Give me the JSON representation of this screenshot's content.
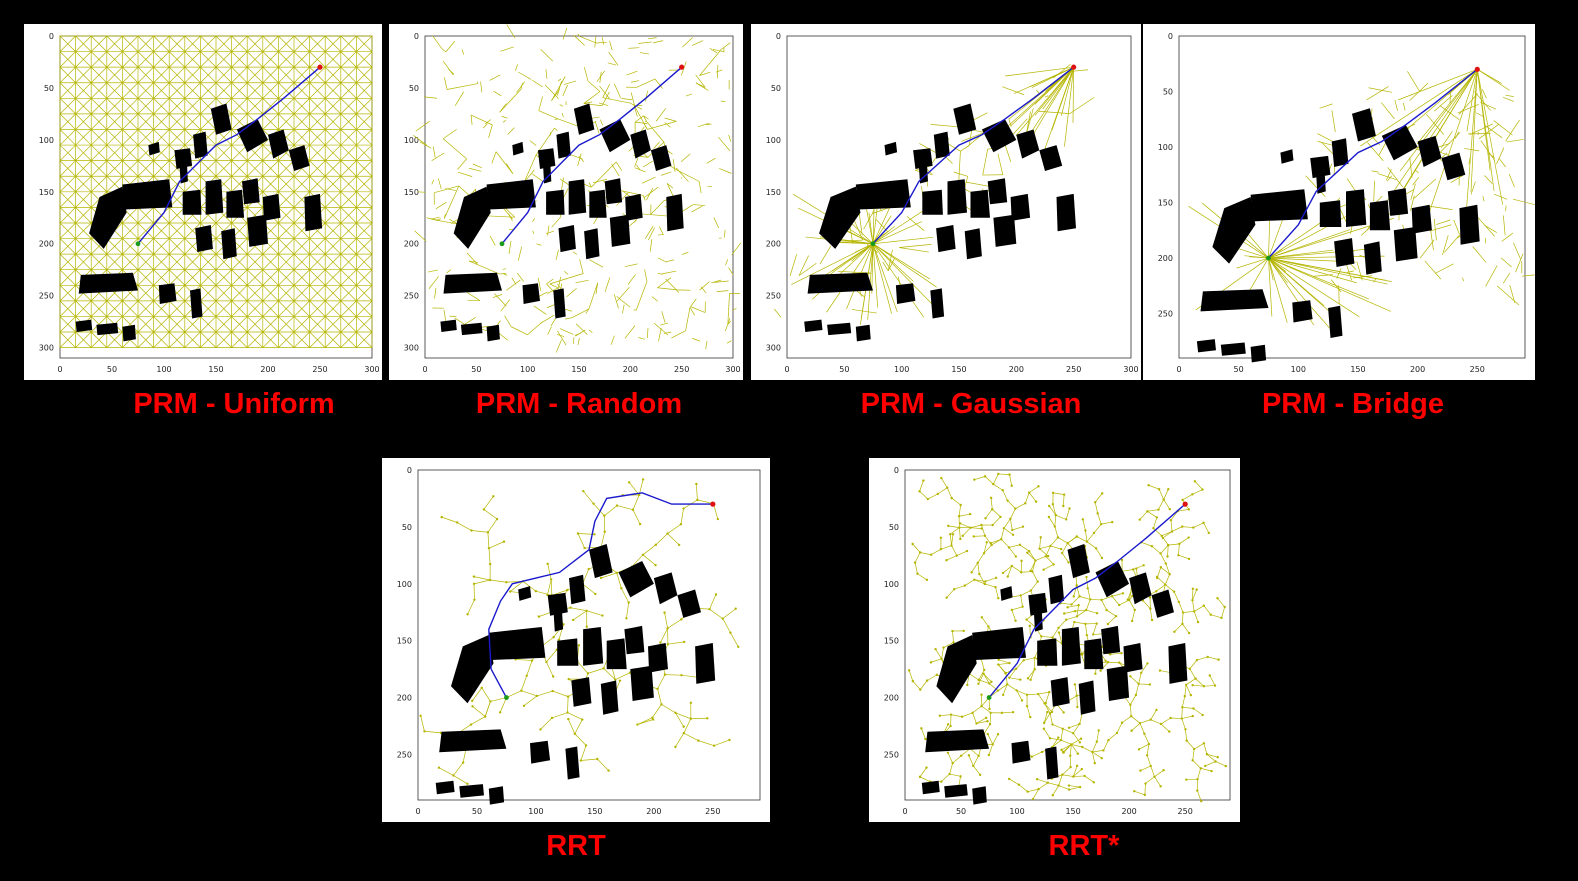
{
  "colors": {
    "background": "#000000",
    "caption": "#ff0000",
    "roadmap": "#b5b500",
    "path": "#1a1acc",
    "goal": "#e01010",
    "start": "#1a9a1a",
    "obstacle": "#000000"
  },
  "panels": [
    {
      "id": "prm-uniform",
      "label": "PRM - Uniform",
      "method": "uniform",
      "x_ticks": [
        "0",
        "50",
        "100",
        "150",
        "200",
        "250",
        "300"
      ],
      "y_ticks": [
        "0",
        "50",
        "100",
        "150",
        "200",
        "250",
        "300"
      ]
    },
    {
      "id": "prm-random",
      "label": "PRM - Random",
      "method": "random",
      "x_ticks": [
        "0",
        "50",
        "100",
        "150",
        "200",
        "250",
        "300"
      ],
      "y_ticks": [
        "0",
        "50",
        "100",
        "150",
        "200",
        "250",
        "300"
      ]
    },
    {
      "id": "prm-gaussian",
      "label": "PRM - Gaussian",
      "method": "gaussian",
      "x_ticks": [
        "0",
        "50",
        "100",
        "150",
        "200",
        "250",
        "300"
      ],
      "y_ticks": [
        "0",
        "50",
        "100",
        "150",
        "200",
        "250",
        "300"
      ]
    },
    {
      "id": "prm-bridge",
      "label": "PRM - Bridge",
      "method": "bridge",
      "x_ticks": [
        "0",
        "50",
        "100",
        "150",
        "200",
        "250"
      ],
      "y_ticks": [
        "0",
        "50",
        "100",
        "150",
        "200",
        "250"
      ]
    },
    {
      "id": "rrt",
      "label": "RRT",
      "method": "rrt",
      "x_ticks": [
        "0",
        "50",
        "100",
        "150",
        "200",
        "250"
      ],
      "y_ticks": [
        "0",
        "50",
        "100",
        "150",
        "200",
        "250"
      ]
    },
    {
      "id": "rrt-star",
      "label": "RRT*",
      "method": "rrtstar",
      "x_ticks": [
        "0",
        "50",
        "100",
        "150",
        "200",
        "250"
      ],
      "y_ticks": [
        "0",
        "50",
        "100",
        "150",
        "200",
        "250"
      ]
    }
  ]
}
